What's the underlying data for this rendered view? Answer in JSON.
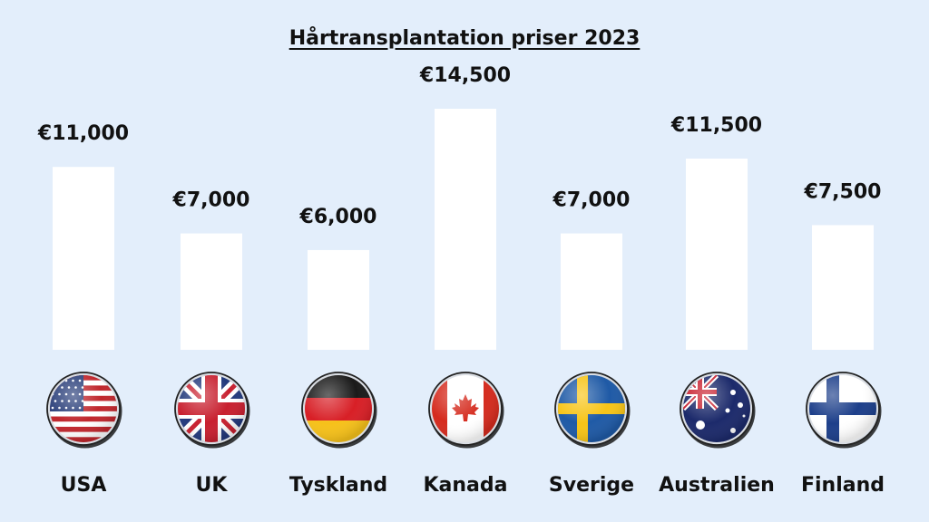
{
  "chart_data": {
    "type": "bar",
    "title": "Hårtransplantation priser 2023",
    "xlabel": "",
    "ylabel": "",
    "categories": [
      "USA",
      "UK",
      "Tyskland",
      "Kanada",
      "Sverige",
      "Australien",
      "Finland"
    ],
    "values": [
      11000,
      7000,
      6000,
      14500,
      7000,
      11500,
      7500
    ],
    "value_labels": [
      "€11,000",
      "€7,000",
      "€6,000",
      "€14,500",
      "€7,000",
      "€11,500",
      "€7,500"
    ],
    "flag_icons": [
      "usa-flag-icon",
      "uk-flag-icon",
      "germany-flag-icon",
      "canada-flag-icon",
      "sweden-flag-icon",
      "australia-flag-icon",
      "finland-flag-icon"
    ],
    "ylim": [
      0,
      14500
    ],
    "grid": false,
    "colors": {
      "background": "#e3eefb",
      "bar": "#ffffff",
      "text": "#111111"
    }
  }
}
